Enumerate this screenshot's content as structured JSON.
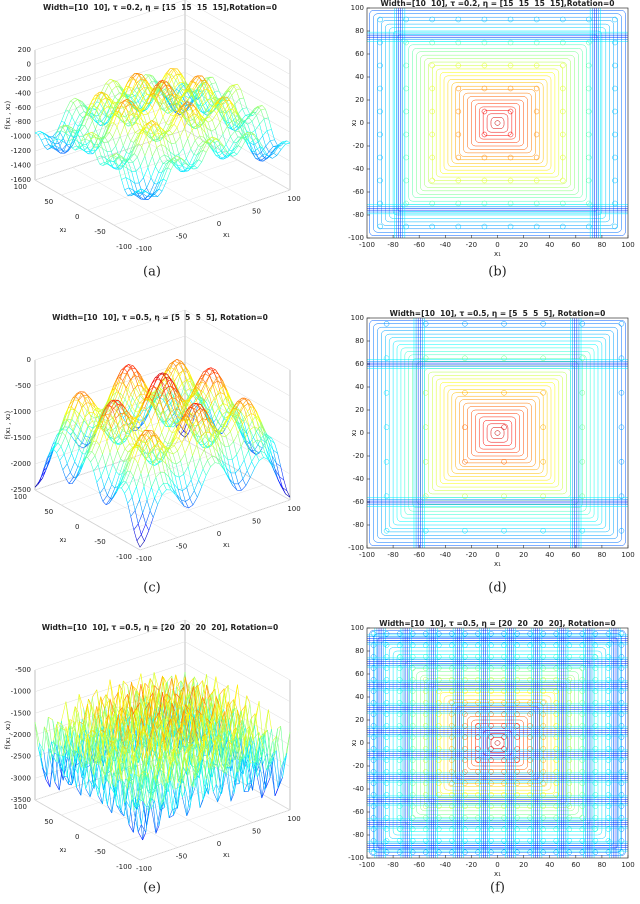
{
  "chart_data": [
    {
      "type": "surface",
      "title": "Width=[10  10], τ =0.2, η = [15  15  15  15],Rotation=0",
      "caption": "(a)",
      "xlabel": "x₁",
      "ylabel": "x₂",
      "zlabel": "f(x₁ , x₂)",
      "xlim": [
        -100,
        100
      ],
      "xticks": [
        -100,
        -50,
        0,
        50,
        100
      ],
      "ylim": [
        -100,
        100
      ],
      "yticks": [
        -100,
        -50,
        0,
        50,
        100
      ],
      "zlim": [
        -1600,
        200
      ],
      "zticks": [
        -1600,
        -1400,
        -1200,
        -1000,
        -800,
        -600,
        -400,
        -200,
        0,
        200
      ]
    },
    {
      "type": "contour",
      "title": "Width=[10  10], τ =0.2, η = [15  15  15  15],Rotation=0",
      "caption": "(b)",
      "xlabel": "x₁",
      "ylabel": "x₂",
      "xlim": [
        -100,
        100
      ],
      "xticks": [
        -100,
        -80,
        -60,
        -40,
        -20,
        0,
        20,
        40,
        60,
        80,
        100
      ],
      "ylim": [
        -100,
        100
      ],
      "yticks": [
        -100,
        -80,
        -60,
        -40,
        -20,
        0,
        20,
        40,
        60,
        80,
        100
      ]
    },
    {
      "type": "surface",
      "title": "Width=[10  10], τ =0.5, η = [5  5  5  5], Rotation=0",
      "caption": "(c)",
      "xlabel": "x₁",
      "ylabel": "x₂",
      "zlabel": "f(x₁ , x₂)",
      "xlim": [
        -100,
        100
      ],
      "xticks": [
        -100,
        -50,
        0,
        50,
        100
      ],
      "ylim": [
        -100,
        100
      ],
      "yticks": [
        -100,
        -50,
        0,
        50,
        100
      ],
      "zlim": [
        -2500,
        0
      ],
      "zticks": [
        -2500,
        -2000,
        -1500,
        -1000,
        -500,
        0
      ]
    },
    {
      "type": "contour",
      "title": "Width=[10  10], τ =0.5, η = [5  5  5  5], Rotation=0",
      "caption": "(d)",
      "xlabel": "x₁",
      "ylabel": "x₂",
      "xlim": [
        -100,
        100
      ],
      "xticks": [
        -100,
        -80,
        -60,
        -40,
        -20,
        0,
        20,
        40,
        60,
        80,
        100
      ],
      "ylim": [
        -100,
        100
      ],
      "yticks": [
        -100,
        -80,
        -60,
        -40,
        -20,
        0,
        20,
        40,
        60,
        80,
        100
      ]
    },
    {
      "type": "surface",
      "title": "Width=[10  10], τ =0.5, η = [20  20  20  20], Rotation=0",
      "caption": "(e)",
      "xlabel": "x₁",
      "ylabel": "x₂",
      "zlabel": "f(x₁ , x₂)",
      "xlim": [
        -100,
        100
      ],
      "xticks": [
        -100,
        -50,
        0,
        50,
        100
      ],
      "ylim": [
        -100,
        100
      ],
      "yticks": [
        -100,
        -50,
        0,
        50,
        100
      ],
      "zlim": [
        -3500,
        -500
      ],
      "zticks": [
        -3500,
        -3000,
        -2500,
        -2000,
        -1500,
        -1000,
        -500
      ]
    },
    {
      "type": "contour",
      "title": "Width=[10  10], τ =0.5, η = [20  20  20  20], Rotation=0",
      "caption": "(f)",
      "xlabel": "x₁",
      "ylabel": "x₂",
      "xlim": [
        -100,
        100
      ],
      "xticks": [
        -100,
        -80,
        -60,
        -40,
        -20,
        0,
        20,
        40,
        60,
        80,
        100
      ],
      "ylim": [
        -100,
        100
      ],
      "yticks": [
        -100,
        -80,
        -60,
        -40,
        -20,
        0,
        20,
        40,
        60,
        80,
        100
      ]
    }
  ]
}
